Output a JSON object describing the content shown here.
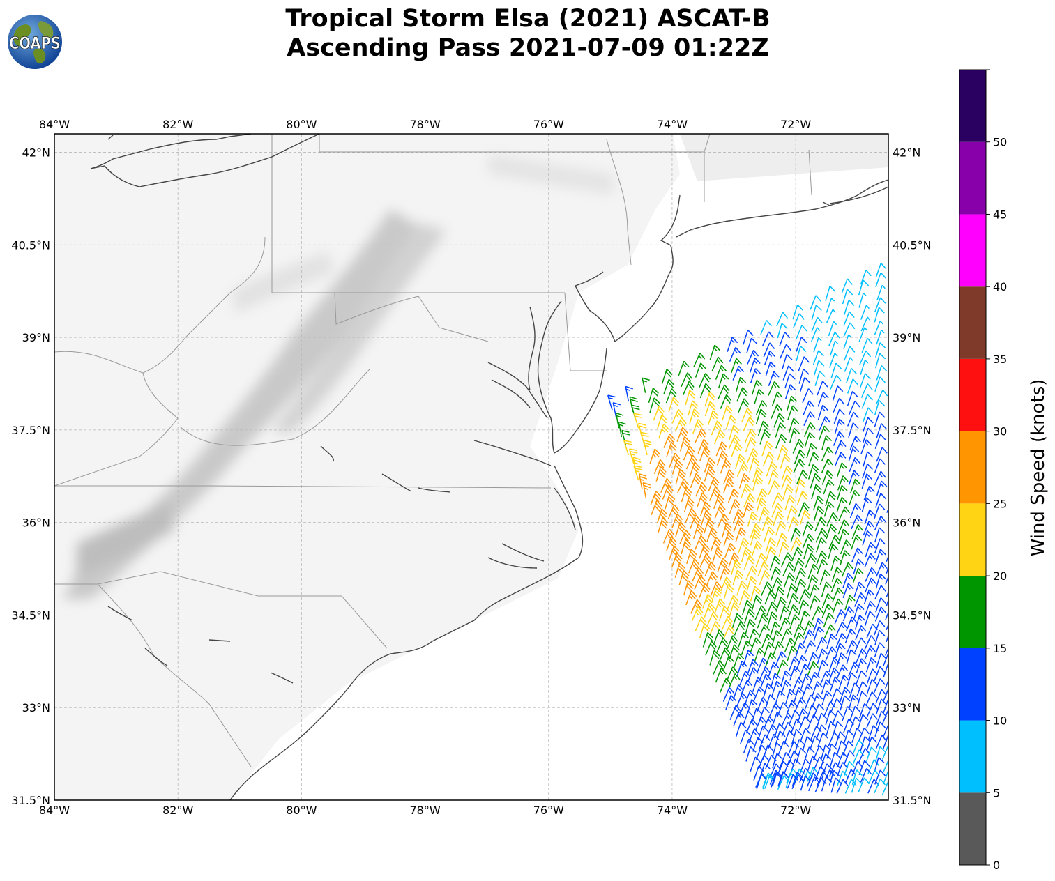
{
  "title": {
    "line1": "Tropical Storm Elsa (2021) ASCAT-B",
    "line2": "Ascending Pass 2021-07-09 01:22Z"
  },
  "logo": {
    "text": "COAPS",
    "icon": "globe-icon"
  },
  "map": {
    "lon_range": [
      -84,
      -70.5
    ],
    "lat_range": [
      31.5,
      42.3
    ],
    "lon_ticks": [
      {
        "value": -84,
        "label": "84°W"
      },
      {
        "value": -82,
        "label": "82°W"
      },
      {
        "value": -80,
        "label": "80°W"
      },
      {
        "value": -78,
        "label": "78°W"
      },
      {
        "value": -76,
        "label": "76°W"
      },
      {
        "value": -74,
        "label": "74°W"
      },
      {
        "value": -72,
        "label": "72°W"
      }
    ],
    "lat_ticks": [
      {
        "value": 42,
        "label": "42°N"
      },
      {
        "value": 40.5,
        "label": "40.5°N"
      },
      {
        "value": 39,
        "label": "39°N"
      },
      {
        "value": 37.5,
        "label": "37.5°N"
      },
      {
        "value": 36,
        "label": "36°N"
      },
      {
        "value": 34.5,
        "label": "34.5°N"
      },
      {
        "value": 33,
        "label": "33°N"
      },
      {
        "value": 31.5,
        "label": "31.5°N"
      }
    ],
    "gridlines": true,
    "coastline_color": "#444444",
    "border_color": "#999999"
  },
  "colorbar": {
    "label": "Wind Speed (knots)",
    "bins": [
      {
        "min": 0,
        "max": 5,
        "color": "#595959"
      },
      {
        "min": 5,
        "max": 10,
        "color": "#00bfff"
      },
      {
        "min": 10,
        "max": 15,
        "color": "#0040ff"
      },
      {
        "min": 15,
        "max": 20,
        "color": "#009600"
      },
      {
        "min": 20,
        "max": 25,
        "color": "#ffd414"
      },
      {
        "min": 25,
        "max": 30,
        "color": "#ff9500"
      },
      {
        "min": 30,
        "max": 35,
        "color": "#ff1010"
      },
      {
        "min": 35,
        "max": 40,
        "color": "#803a2a"
      },
      {
        "min": 40,
        "max": 45,
        "color": "#ff00ff"
      },
      {
        "min": 45,
        "max": 50,
        "color": "#8800aa"
      },
      {
        "min": 50,
        "max": 55,
        "color": "#2a0060"
      }
    ],
    "ticks": [
      "0",
      "5",
      "10",
      "15",
      "20",
      "25",
      "30",
      "35",
      "40",
      "45",
      "50"
    ]
  }
}
